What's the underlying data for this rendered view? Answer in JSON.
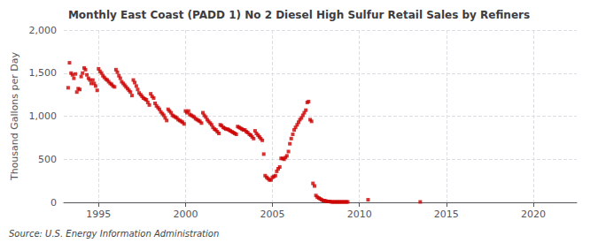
{
  "chart_data": {
    "type": "scatter",
    "title": "Monthly East Coast (PADD 1) No 2 Diesel High Sulfur Retail Sales by Refiners",
    "ylabel": "Thousand Gallons per Day",
    "annotation": "Source: U.S. Energy Information Administration",
    "color": "#cc0000",
    "marker": "square",
    "grid": true,
    "xlim": [
      1993.0,
      2022.5
    ],
    "xticks": [
      1995,
      2000,
      2005,
      2010,
      2015,
      2020
    ],
    "ylim": [
      0,
      2000
    ],
    "yticks": [
      0,
      500,
      {
        "value": 1000,
        "label": "1,000"
      },
      {
        "value": 1500,
        "label": "1,500"
      },
      {
        "value": 2000,
        "label": "2,000"
      }
    ],
    "x": [
      1993.25,
      1993.33,
      1993.42,
      1993.5,
      1993.58,
      1993.67,
      1993.75,
      1993.83,
      1993.92,
      1994.0,
      1994.08,
      1994.17,
      1994.25,
      1994.33,
      1994.42,
      1994.5,
      1994.58,
      1994.67,
      1994.75,
      1994.83,
      1994.92,
      1995.0,
      1995.08,
      1995.17,
      1995.25,
      1995.33,
      1995.42,
      1995.5,
      1995.58,
      1995.67,
      1995.75,
      1995.83,
      1995.92,
      1996.0,
      1996.08,
      1996.17,
      1996.25,
      1996.33,
      1996.42,
      1996.5,
      1996.58,
      1996.67,
      1996.75,
      1996.83,
      1996.92,
      1997.0,
      1997.08,
      1997.17,
      1997.25,
      1997.33,
      1997.42,
      1997.5,
      1997.58,
      1997.67,
      1997.75,
      1997.83,
      1997.92,
      1998.0,
      1998.08,
      1998.17,
      1998.25,
      1998.33,
      1998.42,
      1998.5,
      1998.58,
      1998.67,
      1998.75,
      1998.83,
      1998.92,
      1999.0,
      1999.08,
      1999.17,
      1999.25,
      1999.33,
      1999.42,
      1999.5,
      1999.58,
      1999.67,
      1999.75,
      1999.83,
      1999.92,
      2000.0,
      2000.08,
      2000.17,
      2000.25,
      2000.33,
      2000.42,
      2000.5,
      2000.58,
      2000.67,
      2000.75,
      2000.83,
      2000.92,
      2001.0,
      2001.08,
      2001.17,
      2001.25,
      2001.33,
      2001.42,
      2001.5,
      2001.58,
      2001.67,
      2001.75,
      2001.83,
      2001.92,
      2002.0,
      2002.08,
      2002.17,
      2002.25,
      2002.33,
      2002.42,
      2002.5,
      2002.58,
      2002.67,
      2002.75,
      2002.83,
      2002.92,
      2003.0,
      2003.08,
      2003.17,
      2003.25,
      2003.33,
      2003.42,
      2003.5,
      2003.58,
      2003.67,
      2003.75,
      2003.83,
      2003.92,
      2004.0,
      2004.08,
      2004.17,
      2004.25,
      2004.33,
      2004.42,
      2004.5,
      2004.58,
      2004.67,
      2004.75,
      2004.83,
      2004.92,
      2005.0,
      2005.08,
      2005.17,
      2005.25,
      2005.33,
      2005.42,
      2005.5,
      2005.58,
      2005.67,
      2005.75,
      2005.83,
      2005.92,
      2006.0,
      2006.08,
      2006.17,
      2006.25,
      2006.33,
      2006.42,
      2006.5,
      2006.58,
      2006.67,
      2006.75,
      2006.83,
      2006.92,
      2007.0,
      2007.08,
      2007.17,
      2007.25,
      2007.33,
      2007.42,
      2007.5,
      2007.58,
      2007.67,
      2007.75,
      2007.83,
      2007.92,
      2008.0,
      2008.08,
      2008.17,
      2008.25,
      2008.33,
      2008.42,
      2008.5,
      2008.58,
      2008.67,
      2008.75,
      2008.83,
      2008.92,
      2009.0,
      2009.08,
      2009.17,
      2009.25,
      2009.33,
      2010.5,
      2013.5
    ],
    "values": [
      1330,
      1620,
      1500,
      1480,
      1440,
      1490,
      1280,
      1320,
      1310,
      1460,
      1500,
      1560,
      1540,
      1480,
      1440,
      1420,
      1380,
      1420,
      1380,
      1350,
      1300,
      1550,
      1520,
      1500,
      1470,
      1450,
      1430,
      1420,
      1400,
      1380,
      1370,
      1350,
      1340,
      1540,
      1510,
      1470,
      1440,
      1400,
      1380,
      1360,
      1340,
      1320,
      1300,
      1280,
      1240,
      1420,
      1390,
      1350,
      1310,
      1270,
      1250,
      1230,
      1210,
      1200,
      1190,
      1160,
      1130,
      1260,
      1230,
      1210,
      1150,
      1120,
      1100,
      1080,
      1050,
      1030,
      1010,
      980,
      950,
      1080,
      1060,
      1040,
      1010,
      1000,
      990,
      980,
      960,
      950,
      940,
      930,
      910,
      1060,
      1040,
      1060,
      1020,
      1010,
      1000,
      990,
      970,
      960,
      950,
      940,
      920,
      1040,
      1010,
      990,
      960,
      940,
      920,
      900,
      870,
      850,
      840,
      820,
      800,
      900,
      890,
      870,
      860,
      850,
      850,
      840,
      830,
      820,
      810,
      800,
      790,
      880,
      870,
      860,
      850,
      840,
      840,
      820,
      810,
      790,
      780,
      760,
      740,
      830,
      800,
      780,
      760,
      740,
      720,
      560,
      310,
      290,
      275,
      260,
      260,
      290,
      300,
      310,
      360,
      390,
      410,
      510,
      510,
      500,
      520,
      540,
      590,
      680,
      740,
      790,
      840,
      870,
      900,
      930,
      960,
      980,
      1010,
      1040,
      1070,
      1160,
      1170,
      960,
      940,
      220,
      190,
      80,
      60,
      50,
      40,
      30,
      20,
      20,
      15,
      10,
      10,
      8,
      5,
      5,
      5,
      5,
      5,
      5,
      5,
      5,
      5,
      5,
      5,
      5,
      30,
      5
    ]
  }
}
